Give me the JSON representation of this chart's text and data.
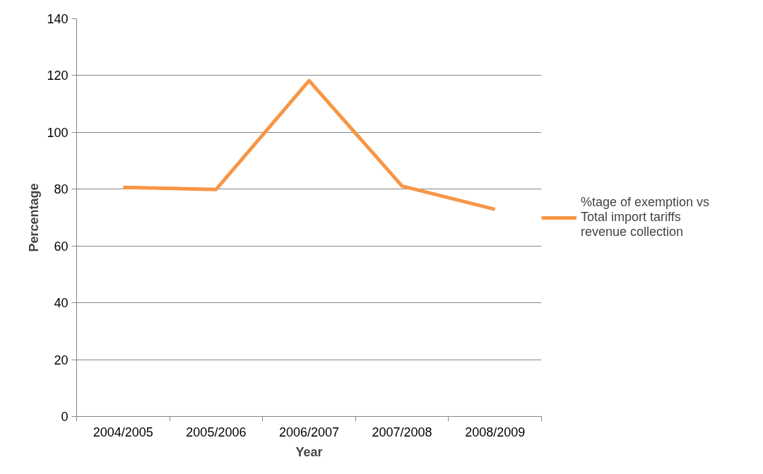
{
  "chart_data": {
    "type": "line",
    "xlabel": "Year",
    "ylabel": "Percentage",
    "categories": [
      "2004/2005",
      "2005/2006",
      "2006/2007",
      "2007/2008",
      "2008/2009"
    ],
    "series": [
      {
        "name": "%tage of exemption vs Total import tariffs revenue collection",
        "color": "#f79646",
        "values": [
          80.6,
          79.9,
          118.2,
          81.1,
          72.9
        ]
      }
    ],
    "ylim": [
      0,
      140
    ],
    "yticks": [
      0,
      20,
      40,
      60,
      80,
      100,
      120,
      140
    ],
    "grid": "y",
    "legend": "right",
    "marker": "none",
    "line_style": "solid"
  }
}
